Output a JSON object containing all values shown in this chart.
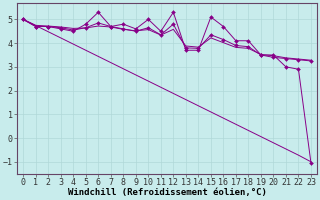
{
  "background_color": "#c8ecec",
  "grid_color": "#b0d8d8",
  "line_color": "#880088",
  "xlabel": "Windchill (Refroidissement éolien,°C)",
  "xlabel_fontsize": 6.5,
  "tick_fontsize": 6,
  "xlim": [
    -0.5,
    23.5
  ],
  "ylim": [
    -1.5,
    5.7
  ],
  "yticks": [
    -1,
    0,
    1,
    2,
    3,
    4,
    5
  ],
  "xticks": [
    0,
    1,
    2,
    3,
    4,
    5,
    6,
    7,
    8,
    9,
    10,
    11,
    12,
    13,
    14,
    15,
    16,
    17,
    18,
    19,
    20,
    21,
    22,
    23
  ],
  "line_jagged_x": [
    0,
    1,
    2,
    3,
    4,
    5,
    6,
    7,
    8,
    9,
    10,
    11,
    12,
    13,
    14,
    15,
    16,
    17,
    18,
    19,
    20,
    21,
    22,
    23
  ],
  "line_jagged_y": [
    5.0,
    4.7,
    4.7,
    4.6,
    4.5,
    4.8,
    5.3,
    4.7,
    4.8,
    4.6,
    5.0,
    4.5,
    5.3,
    3.7,
    3.7,
    5.1,
    4.7,
    4.1,
    4.1,
    3.5,
    3.5,
    3.0,
    2.9,
    -1.05
  ],
  "line_smooth1_x": [
    0,
    1,
    2,
    3,
    4,
    5,
    6,
    7,
    8,
    9,
    10,
    11,
    12,
    13,
    14,
    15,
    16,
    17,
    18,
    19,
    20,
    21,
    22,
    23
  ],
  "line_smooth1_y": [
    5.0,
    4.7,
    4.7,
    4.65,
    4.55,
    4.65,
    4.85,
    4.7,
    4.6,
    4.5,
    4.65,
    4.35,
    4.8,
    3.8,
    3.78,
    4.35,
    4.15,
    3.9,
    3.85,
    3.5,
    3.4,
    3.35,
    3.3,
    3.25
  ],
  "line_smooth2_x": [
    0,
    1,
    2,
    3,
    4,
    5,
    6,
    7,
    8,
    9,
    10,
    11,
    12,
    13,
    14,
    15,
    16,
    17,
    18,
    19,
    20,
    21,
    22,
    23
  ],
  "line_smooth2_y": [
    5.0,
    4.75,
    4.72,
    4.68,
    4.62,
    4.64,
    4.72,
    4.68,
    4.58,
    4.52,
    4.57,
    4.34,
    4.58,
    3.88,
    3.83,
    4.22,
    4.02,
    3.82,
    3.78,
    3.52,
    3.47,
    3.38,
    3.33,
    3.28
  ],
  "line_diagonal_x": [
    0,
    1,
    2,
    3,
    4,
    5,
    6,
    7,
    8,
    9,
    10,
    11,
    12,
    13,
    14,
    15,
    16,
    17,
    18,
    19,
    20,
    21,
    22,
    23
  ],
  "line_diagonal_y": [
    5.0,
    4.74,
    4.48,
    4.22,
    3.96,
    3.7,
    3.44,
    3.18,
    2.92,
    2.66,
    2.4,
    2.14,
    1.88,
    1.62,
    1.36,
    1.1,
    0.84,
    0.58,
    0.32,
    0.06,
    -0.2,
    -0.46,
    -0.72,
    -1.0
  ]
}
